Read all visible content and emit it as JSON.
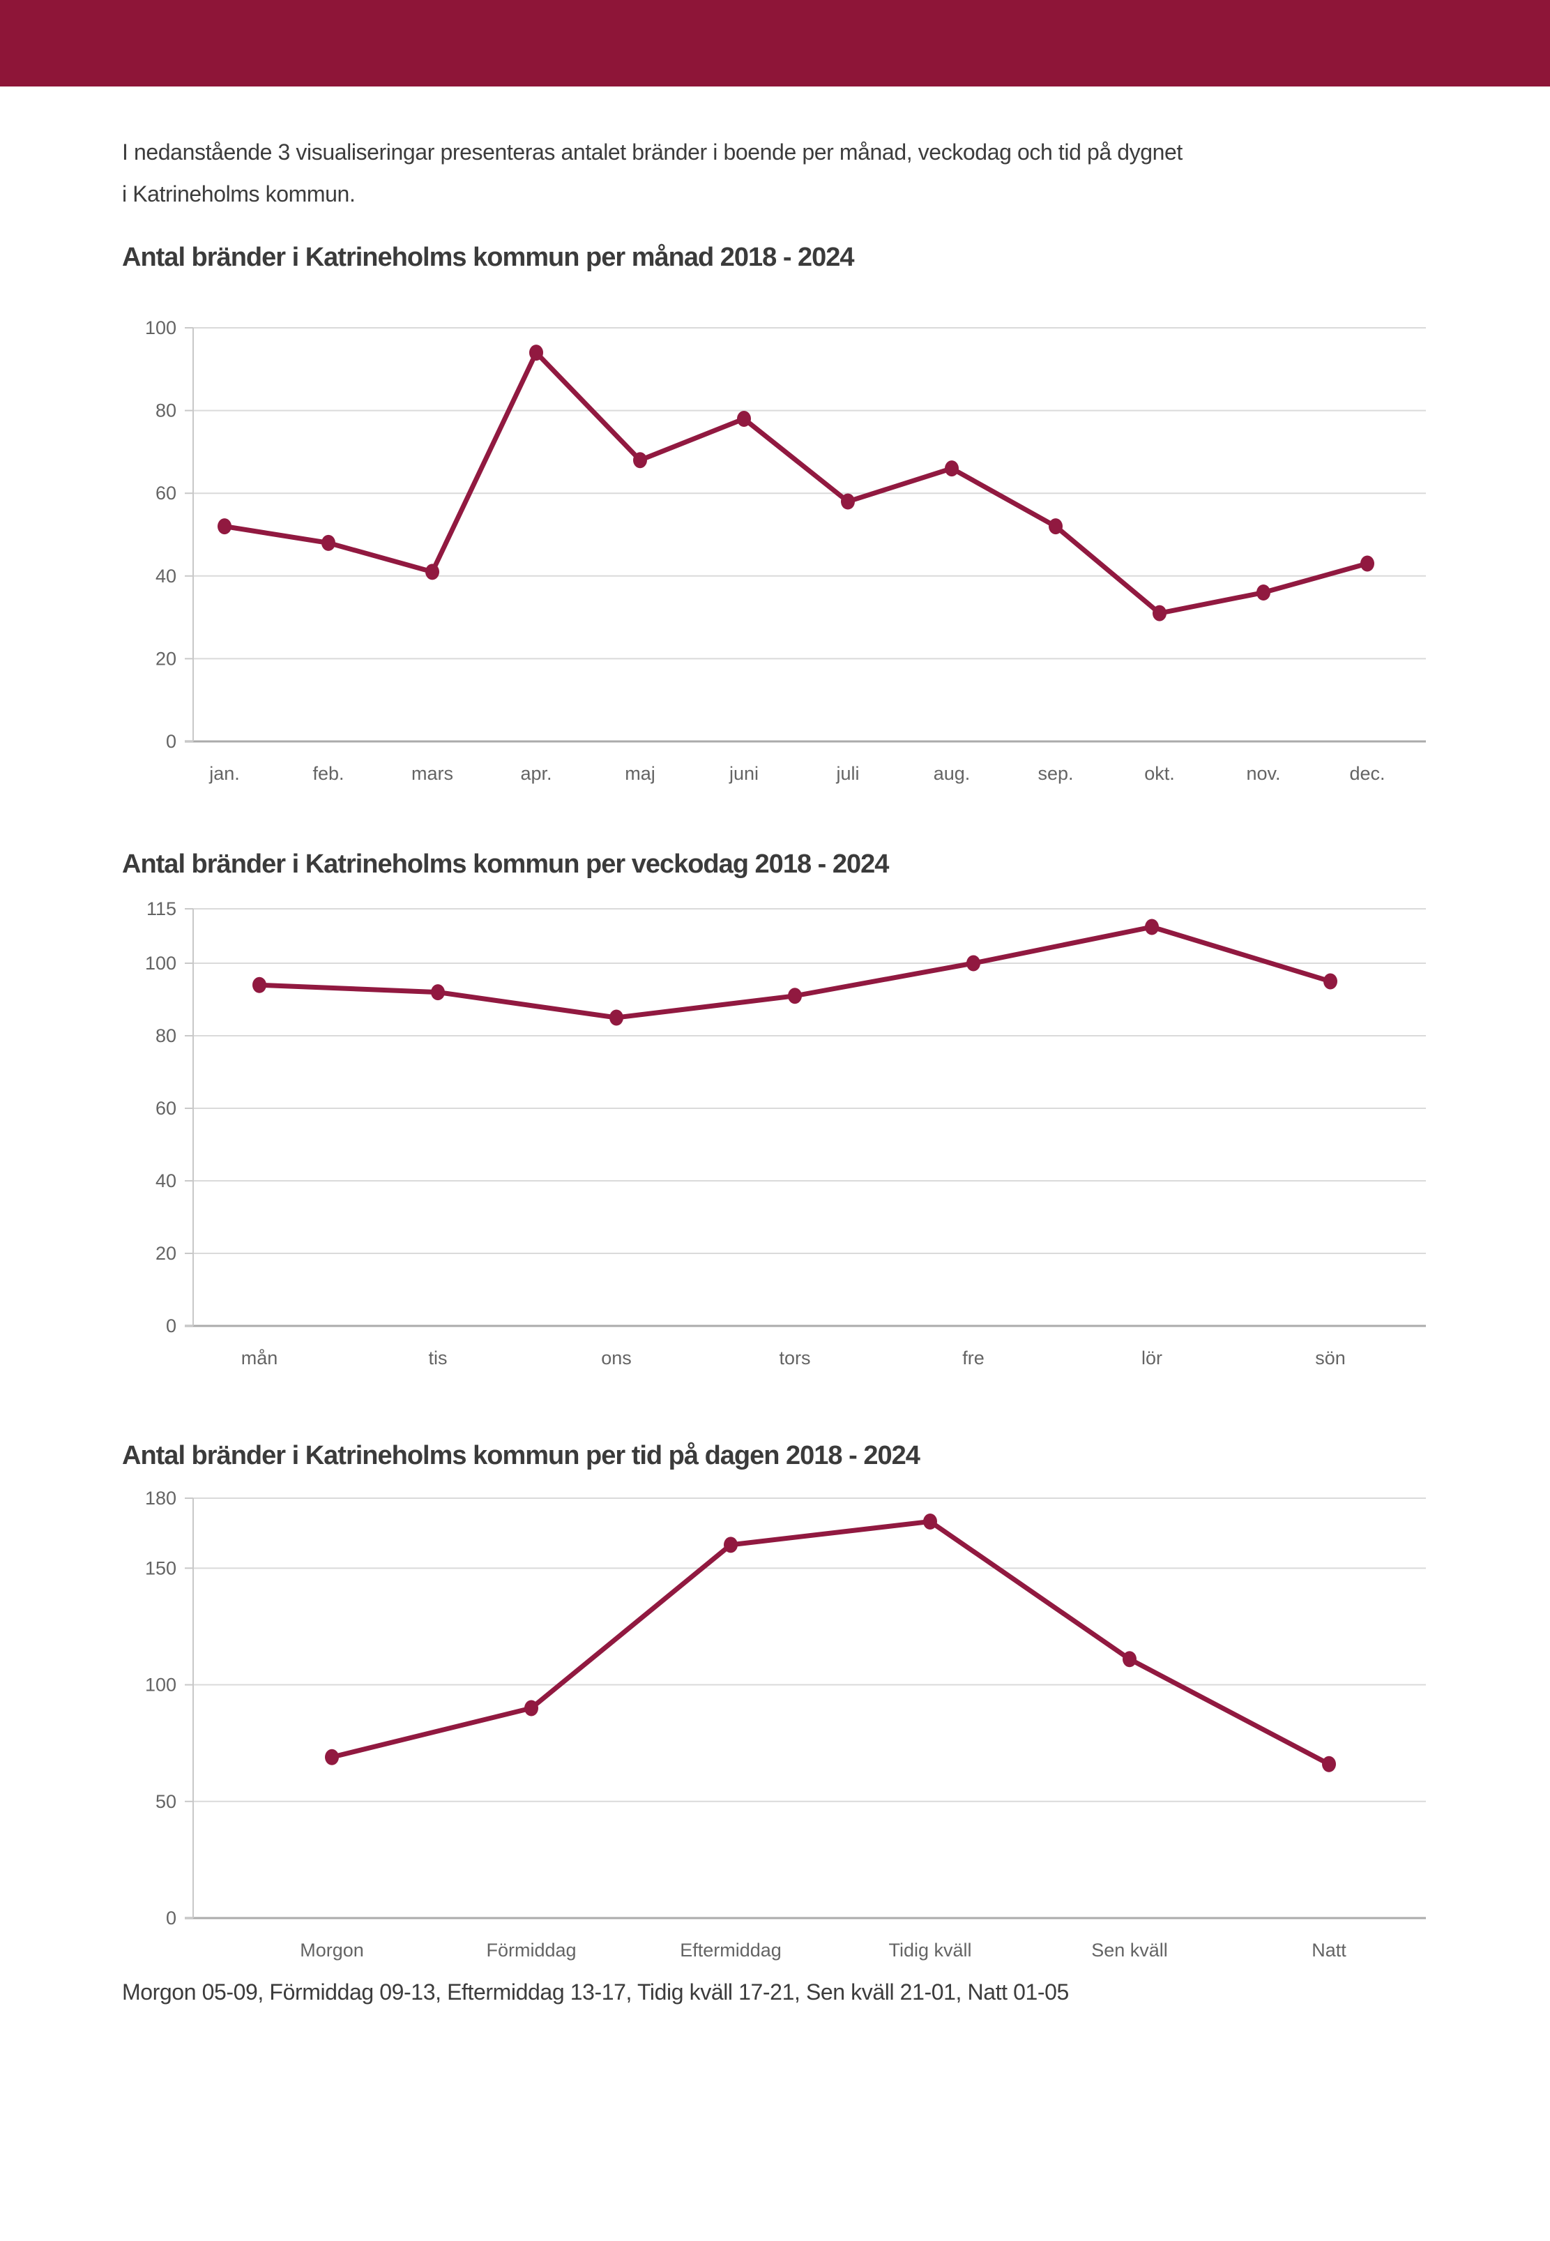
{
  "page": {
    "intro_line1": "I nedanstående 3 visualiseringar presenteras antalet bränder i boende per månad, veckodag och tid på dygnet",
    "intro_line2": "i Katrineholms kommun.",
    "footer": "Morgon 05-09, Förmiddag 09-13, Eftermiddag 13-17, Tidig kväll 17-21, Sen kväll 21-01, Natt 01-05"
  },
  "colors": {
    "header_bar": "#8E1538",
    "series_line": "#911940",
    "gridline": "#DADADA",
    "zero_axis": "#ABABAB",
    "left_axis": "#C8C8C8",
    "tick_text": "#646464",
    "body_text": "#3C3C3C"
  },
  "chart_data": [
    {
      "type": "line",
      "title": "Antal bränder i Katrineholms kommun per månad 2018 - 2024",
      "categories": [
        "jan.",
        "feb.",
        "mars",
        "apr.",
        "maj",
        "juni",
        "juli",
        "aug.",
        "sep.",
        "okt.",
        "nov.",
        "dec."
      ],
      "values": [
        52,
        48,
        41,
        94,
        68,
        78,
        58,
        66,
        52,
        31,
        36,
        43
      ],
      "xlabel": "",
      "ylabel": "",
      "ylim": [
        0,
        100
      ],
      "yticks": [
        0,
        20,
        40,
        60,
        80,
        100
      ],
      "grid": "on",
      "legend": "none"
    },
    {
      "type": "line",
      "title": "Antal bränder i Katrineholms kommun per veckodag 2018 - 2024",
      "categories": [
        "mån",
        "tis",
        "ons",
        "tors",
        "fre",
        "lör",
        "sön"
      ],
      "values": [
        94,
        92,
        85,
        91,
        100,
        110,
        95
      ],
      "xlabel": "",
      "ylabel": "",
      "ylim": [
        0,
        115
      ],
      "yticks": [
        0,
        20,
        40,
        60,
        80,
        100,
        115
      ],
      "grid": "on",
      "legend": "none"
    },
    {
      "type": "line",
      "title": "Antal bränder i Katrineholms kommun per tid på dagen 2018 - 2024",
      "categories": [
        "Morgon",
        "Förmiddag",
        "Eftermiddag",
        "Tidig kväll",
        "Sen kväll",
        "Natt"
      ],
      "values": [
        69,
        90,
        160,
        170,
        111,
        66
      ],
      "xlabel": "",
      "ylabel": "",
      "ylim": [
        0,
        180
      ],
      "yticks": [
        0,
        50,
        100,
        150,
        180
      ],
      "grid": "on",
      "legend": "none"
    }
  ]
}
